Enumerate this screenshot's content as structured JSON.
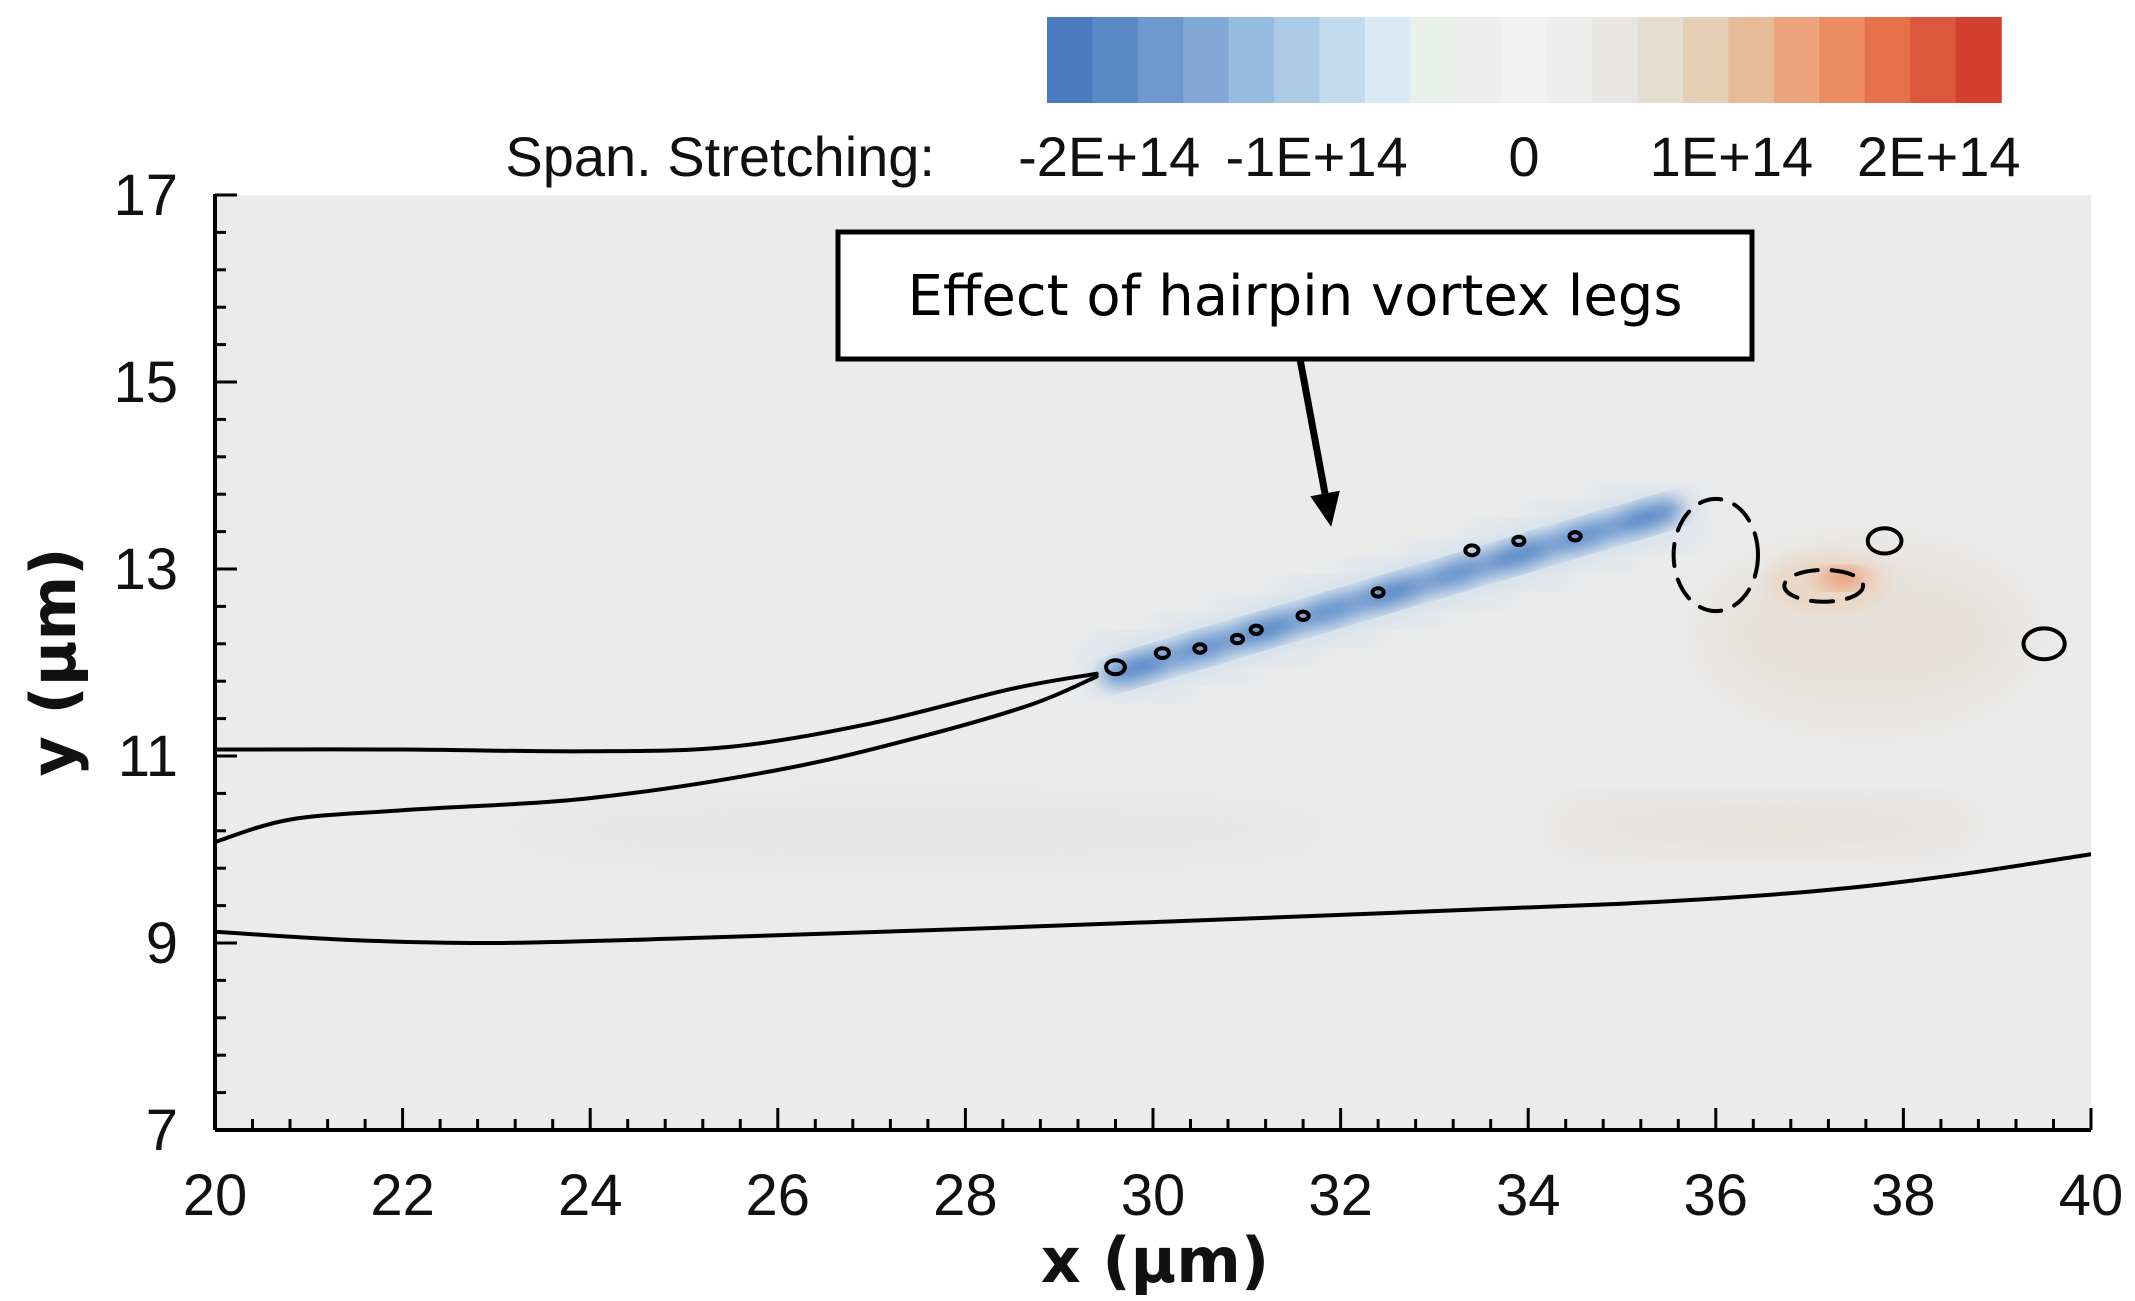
{
  "chart_data": {
    "type": "heatmap",
    "title": "",
    "xlabel": "x (μm)",
    "ylabel": "y (μm)",
    "xlim": [
      20,
      40
    ],
    "ylim": [
      7,
      17
    ],
    "x_ticks": [
      20,
      22,
      24,
      26,
      28,
      30,
      32,
      34,
      36,
      38,
      40
    ],
    "y_ticks": [
      7,
      9,
      11,
      13,
      15,
      17
    ],
    "x_tick_labels": [
      "20",
      "22",
      "24",
      "26",
      "28",
      "30",
      "32",
      "34",
      "36",
      "38",
      "40"
    ],
    "y_tick_labels": [
      "7",
      "9",
      "11",
      "13",
      "15",
      "17"
    ],
    "colorbar": {
      "label": "Span. Stretching:",
      "range": [
        -230000000000000.0,
        230000000000000.0
      ],
      "ticks": [
        -200000000000000.0,
        -100000000000000.0,
        0,
        100000000000000.0,
        200000000000000.0
      ],
      "tick_labels": [
        "-2E+14",
        "-1E+14",
        "0",
        "1E+14",
        "2E+14"
      ],
      "colors": [
        "#4a7bbf",
        "#5b89c6",
        "#6d98ce",
        "#82a9d6",
        "#97badf",
        "#adcbe7",
        "#c3dbee",
        "#d9eaf4",
        "#e8f1ec",
        "#eeeeee",
        "#f1f1f1",
        "#eeeeee",
        "#e9e7e3",
        "#e6dccf",
        "#e5cfb6",
        "#e7bb98",
        "#eba47c",
        "#eb8b62",
        "#e6724c",
        "#dd573c",
        "#d4402f"
      ]
    },
    "field_regions": [
      {
        "name": "negative stretching band",
        "x_range": [
          29.6,
          35.6
        ],
        "y_range": [
          11.8,
          13.8
        ],
        "peak_value": -200000000000000.0
      },
      {
        "name": "positive stretching spot",
        "x_range": [
          36.6,
          37.8
        ],
        "y_range": [
          12.6,
          13.1
        ],
        "peak_value": 150000000000000.0
      }
    ],
    "solid_contours": [
      {
        "name": "upper contour",
        "points": [
          [
            20,
            11.07
          ],
          [
            22,
            11.07
          ],
          [
            24,
            11.05
          ],
          [
            25.5,
            11.1
          ],
          [
            27,
            11.35
          ],
          [
            28.5,
            11.72
          ],
          [
            29.4,
            11.88
          ]
        ]
      },
      {
        "name": "middle contour",
        "points": [
          [
            20,
            10.08
          ],
          [
            20.8,
            10.32
          ],
          [
            22,
            10.42
          ],
          [
            24,
            10.55
          ],
          [
            26,
            10.85
          ],
          [
            27.5,
            11.2
          ],
          [
            28.7,
            11.55
          ],
          [
            29.4,
            11.85
          ]
        ]
      },
      {
        "name": "lower contour",
        "points": [
          [
            20,
            9.12
          ],
          [
            21.5,
            9.03
          ],
          [
            23,
            9.0
          ],
          [
            25,
            9.05
          ],
          [
            28,
            9.15
          ],
          [
            32,
            9.3
          ],
          [
            35,
            9.42
          ],
          [
            37,
            9.55
          ],
          [
            38.5,
            9.72
          ],
          [
            40,
            9.95
          ]
        ]
      }
    ],
    "dashed_contours": [
      {
        "name": "leading edge lobe",
        "center": [
          36.0,
          13.15
        ],
        "radii": [
          0.45,
          0.6
        ]
      },
      {
        "name": "positive spot ring",
        "center": [
          37.15,
          12.82
        ],
        "radii": [
          0.42,
          0.17
        ]
      }
    ],
    "small_loops": [
      {
        "center": [
          29.6,
          11.95
        ],
        "r": 0.1
      },
      {
        "center": [
          30.1,
          12.1
        ],
        "r": 0.07
      },
      {
        "center": [
          30.5,
          12.15
        ],
        "r": 0.06
      },
      {
        "center": [
          30.9,
          12.25
        ],
        "r": 0.06
      },
      {
        "center": [
          31.1,
          12.35
        ],
        "r": 0.06
      },
      {
        "center": [
          31.6,
          12.5
        ],
        "r": 0.06
      },
      {
        "center": [
          32.4,
          12.75
        ],
        "r": 0.06
      },
      {
        "center": [
          33.4,
          13.2
        ],
        "r": 0.07
      },
      {
        "center": [
          33.9,
          13.3
        ],
        "r": 0.06
      },
      {
        "center": [
          34.5,
          13.35
        ],
        "r": 0.06
      },
      {
        "center": [
          37.8,
          13.3
        ],
        "r": 0.18
      },
      {
        "center": [
          39.5,
          12.2
        ],
        "r": 0.22
      }
    ],
    "annotation": {
      "text": "Effect of hairpin vortex legs",
      "arrow_target": [
        31.9,
        13.45
      ]
    }
  }
}
